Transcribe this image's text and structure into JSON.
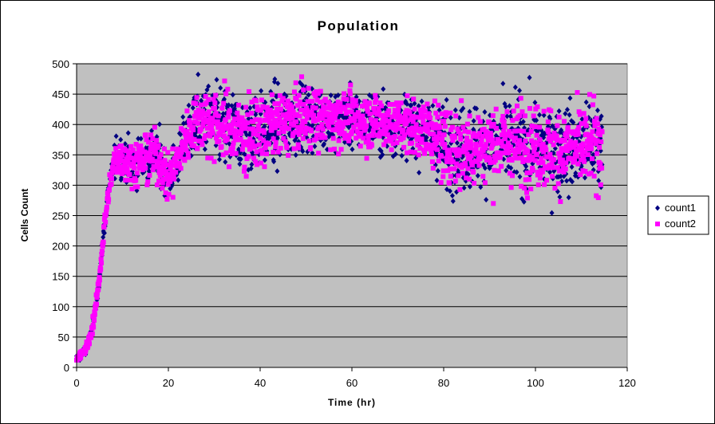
{
  "chart_data": {
    "type": "scatter",
    "title": "Population",
    "xlabel": "Time (hr)",
    "ylabel": "Cells Count",
    "xlim": [
      0,
      120
    ],
    "ylim": [
      0,
      500
    ],
    "x_ticks": [
      0,
      20,
      40,
      60,
      80,
      100,
      120
    ],
    "y_ticks": [
      0,
      50,
      100,
      150,
      200,
      250,
      300,
      350,
      400,
      450,
      500
    ],
    "grid": "horizontal major gridlines",
    "plot_background": "#C0C0C0",
    "legend": "right",
    "series": [
      {
        "name": "count1",
        "marker": "diamond",
        "color": "#000080",
        "trend": [
          [
            0,
            15
          ],
          [
            1,
            20
          ],
          [
            2,
            30
          ],
          [
            3,
            50
          ],
          [
            4,
            90
          ],
          [
            5,
            150
          ],
          [
            6,
            230
          ],
          [
            7,
            290
          ],
          [
            8,
            330
          ],
          [
            9,
            350
          ],
          [
            10,
            345
          ],
          [
            12,
            335
          ],
          [
            14,
            340
          ],
          [
            16,
            350
          ],
          [
            18,
            345
          ],
          [
            20,
            310
          ],
          [
            22,
            340
          ],
          [
            24,
            380
          ],
          [
            26,
            405
          ],
          [
            28,
            410
          ],
          [
            30,
            400
          ],
          [
            32,
            395
          ],
          [
            34,
            390
          ],
          [
            36,
            385
          ],
          [
            38,
            385
          ],
          [
            40,
            390
          ],
          [
            42,
            395
          ],
          [
            44,
            400
          ],
          [
            46,
            405
          ],
          [
            48,
            410
          ],
          [
            50,
            412
          ],
          [
            55,
            410
          ],
          [
            60,
            408
          ],
          [
            65,
            405
          ],
          [
            70,
            400
          ],
          [
            75,
            395
          ],
          [
            77,
            390
          ],
          [
            80,
            365
          ],
          [
            85,
            360
          ],
          [
            90,
            368
          ],
          [
            95,
            370
          ],
          [
            100,
            365
          ],
          [
            105,
            360
          ],
          [
            110,
            360
          ],
          [
            115,
            370
          ]
        ],
        "spread": [
          [
            0,
            5
          ],
          [
            5,
            10
          ],
          [
            8,
            25
          ],
          [
            12,
            30
          ],
          [
            18,
            35
          ],
          [
            22,
            30
          ],
          [
            26,
            50
          ],
          [
            35,
            55
          ],
          [
            45,
            50
          ],
          [
            55,
            40
          ],
          [
            65,
            40
          ],
          [
            75,
            40
          ],
          [
            80,
            55
          ],
          [
            100,
            60
          ],
          [
            115,
            60
          ]
        ]
      },
      {
        "name": "count2",
        "marker": "square",
        "color": "#FF00FF",
        "trend": [
          [
            0,
            15
          ],
          [
            1,
            20
          ],
          [
            2,
            30
          ],
          [
            3,
            50
          ],
          [
            4,
            90
          ],
          [
            5,
            150
          ],
          [
            6,
            230
          ],
          [
            7,
            290
          ],
          [
            8,
            330
          ],
          [
            9,
            350
          ],
          [
            10,
            345
          ],
          [
            12,
            335
          ],
          [
            14,
            340
          ],
          [
            16,
            350
          ],
          [
            18,
            345
          ],
          [
            20,
            310
          ],
          [
            22,
            340
          ],
          [
            24,
            380
          ],
          [
            26,
            405
          ],
          [
            28,
            410
          ],
          [
            30,
            400
          ],
          [
            32,
            395
          ],
          [
            34,
            390
          ],
          [
            36,
            385
          ],
          [
            38,
            385
          ],
          [
            40,
            390
          ],
          [
            42,
            395
          ],
          [
            44,
            400
          ],
          [
            46,
            405
          ],
          [
            48,
            410
          ],
          [
            50,
            412
          ],
          [
            55,
            410
          ],
          [
            60,
            408
          ],
          [
            65,
            405
          ],
          [
            70,
            400
          ],
          [
            75,
            395
          ],
          [
            77,
            390
          ],
          [
            80,
            365
          ],
          [
            85,
            360
          ],
          [
            90,
            368
          ],
          [
            95,
            370
          ],
          [
            100,
            365
          ],
          [
            105,
            360
          ],
          [
            110,
            360
          ],
          [
            115,
            370
          ]
        ],
        "spread": [
          [
            0,
            5
          ],
          [
            5,
            10
          ],
          [
            8,
            25
          ],
          [
            12,
            30
          ],
          [
            18,
            35
          ],
          [
            22,
            30
          ],
          [
            26,
            45
          ],
          [
            35,
            50
          ],
          [
            45,
            45
          ],
          [
            55,
            38
          ],
          [
            65,
            38
          ],
          [
            75,
            38
          ],
          [
            80,
            50
          ],
          [
            100,
            55
          ],
          [
            115,
            55
          ]
        ]
      }
    ]
  }
}
